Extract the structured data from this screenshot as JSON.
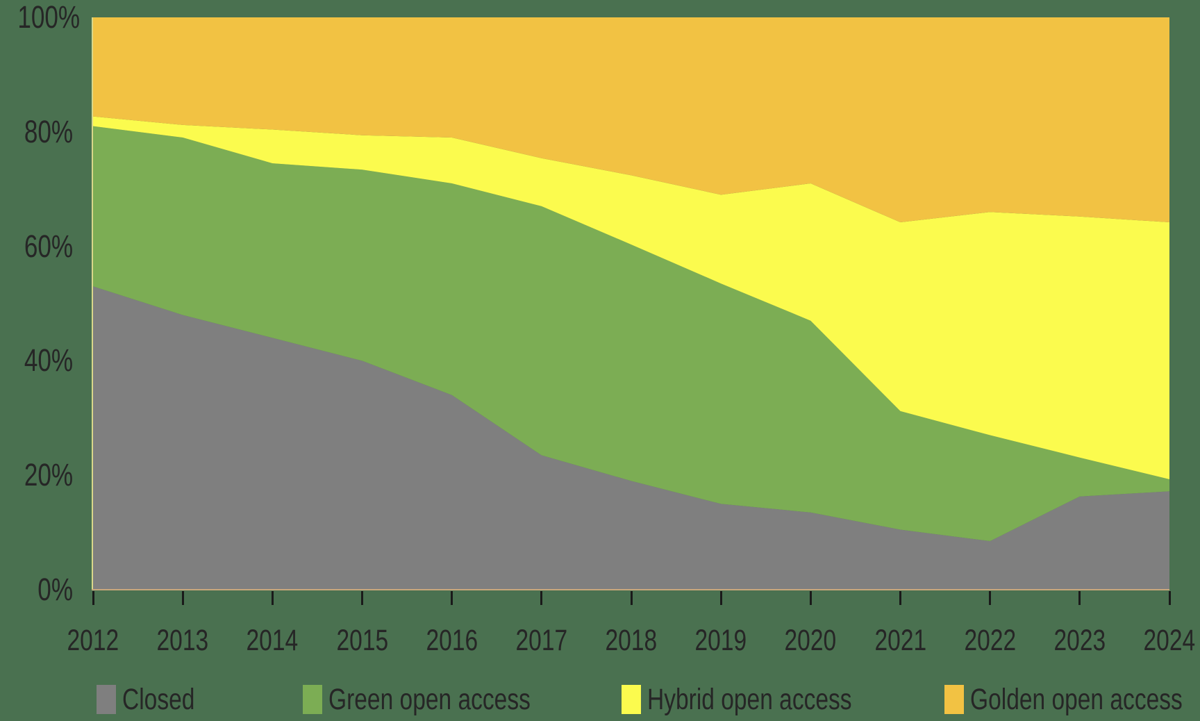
{
  "background_color": "#4a7150",
  "text_color": "#262626",
  "axis": {
    "y_tick_labels": [
      "100%",
      "80%",
      "60%",
      "40%",
      "20%",
      "0%"
    ],
    "x_tick_labels": [
      "2012",
      "2013",
      "2014",
      "2015",
      "2016",
      "2017",
      "2018",
      "2019",
      "2020",
      "2021",
      "2022",
      "2023",
      "2024"
    ],
    "y_axis_line_color": "#d9d78a",
    "x_axis_line_color": "#c9a87c",
    "tick_color": "#1a1a1a"
  },
  "legend": {
    "items": [
      {
        "label": "Closed",
        "color": "#7f7f7f"
      },
      {
        "label": "Green open access",
        "color": "#7cad54"
      },
      {
        "label": "Hybrid open access",
        "color": "#fbfb4e"
      },
      {
        "label": "Golden open access",
        "color": "#f2c243"
      }
    ]
  },
  "chart_data": {
    "type": "area",
    "stacking": "percent",
    "title": "",
    "xlabel": "",
    "ylabel": "",
    "ylim": [
      0,
      100
    ],
    "grid": false,
    "legend_position": "bottom",
    "x": [
      2012,
      2013,
      2014,
      2015,
      2016,
      2017,
      2018,
      2019,
      2020,
      2021,
      2022,
      2023,
      2024
    ],
    "series": [
      {
        "name": "Closed",
        "color": "#7f7f7f",
        "values": [
          53.0,
          48.0,
          44.0,
          40.0,
          34.0,
          23.5,
          19.0,
          15.0,
          13.5,
          10.5,
          8.5,
          16.3,
          17.2
        ]
      },
      {
        "name": "Green open access",
        "color": "#7cad54",
        "values": [
          28.0,
          31.0,
          30.5,
          33.4,
          37.0,
          43.5,
          41.3,
          38.5,
          33.5,
          20.7,
          18.5,
          6.8,
          2.1
        ]
      },
      {
        "name": "Hybrid open access",
        "color": "#fbfb4e",
        "values": [
          1.7,
          2.2,
          5.9,
          6.0,
          8.0,
          8.4,
          12.1,
          15.5,
          24.0,
          33.0,
          39.0,
          42.1,
          44.9
        ]
      },
      {
        "name": "Golden open access",
        "color": "#f2c243",
        "values": [
          17.3,
          18.8,
          19.6,
          20.6,
          21.0,
          24.6,
          27.6,
          31.0,
          29.0,
          35.8,
          34.0,
          34.8,
          35.8
        ]
      }
    ]
  }
}
